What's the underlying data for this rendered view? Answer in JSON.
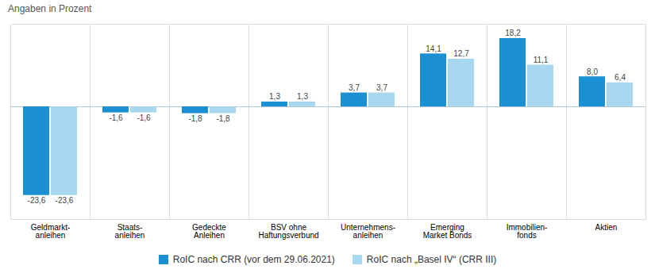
{
  "chart_data": {
    "type": "bar",
    "title": "Angaben in Prozent",
    "categories": [
      "Geldmarkt-\nanleihen",
      "Staats-\nanleihen",
      "Gedeckte\nAnleihen",
      "BSV ohne\nHaftungsverbund",
      "Unternehmens-\nanleihen",
      "Emerging\nMarket Bonds",
      "Immobilien-\nfonds",
      "Aktien"
    ],
    "series": [
      {
        "name": "RoIC nach CRR (vor dem 29.06.2021)",
        "color": "#1a8fd1",
        "values": [
          -23.6,
          -1.6,
          -1.8,
          1.3,
          3.7,
          14.1,
          18.2,
          8.0
        ],
        "value_labels": [
          "-23,6",
          "-1,6",
          "-1,8",
          "1,3",
          "3,7",
          "14,1",
          "18,2",
          "8,0"
        ]
      },
      {
        "name": "RoIC nach „Basel IV“ (CRR III)",
        "color": "#a8d8f0",
        "values": [
          -23.6,
          -1.6,
          -1.8,
          1.3,
          3.7,
          12.7,
          11.1,
          6.4
        ],
        "value_labels": [
          "-23,6",
          "-1,6",
          "-1,8",
          "1,3",
          "3,7",
          "12,7",
          "11,1",
          "6,4"
        ]
      }
    ],
    "ylim": [
      -30,
      22
    ],
    "grid": false,
    "legend": "bottom",
    "data_labels": true,
    "tick_labels": "x"
  }
}
